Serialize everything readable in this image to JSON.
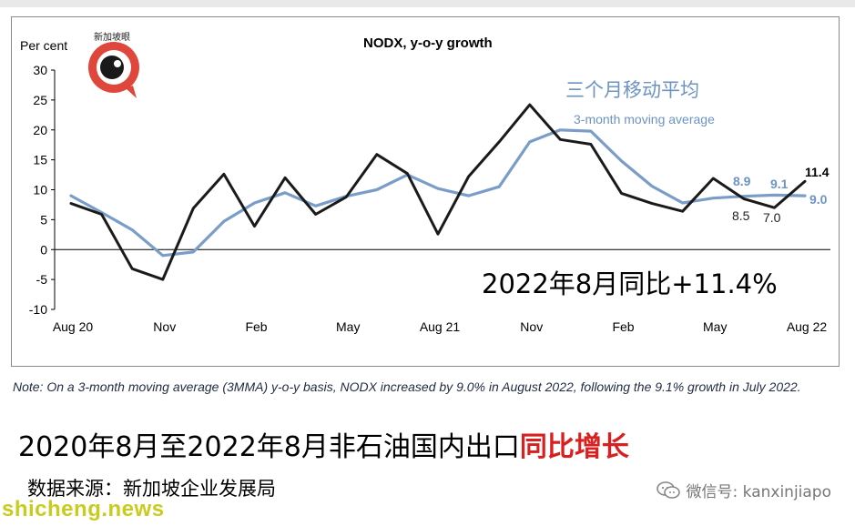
{
  "chart_data": {
    "type": "line",
    "title": "NODX, y-o-y growth",
    "ylabel": "Per cent",
    "ylim": [
      -10,
      30
    ],
    "yticks": [
      "30",
      "25",
      "20",
      "15",
      "10",
      "5",
      "0",
      "-5",
      "-10"
    ],
    "xtick_labels": [
      "Aug 20",
      "Nov",
      "Feb",
      "May",
      "Aug 21",
      "Nov",
      "Feb",
      "May",
      "Aug 22"
    ],
    "x": [
      "Aug 20",
      "Sep 20",
      "Oct 20",
      "Nov 20",
      "Dec 20",
      "Jan 21",
      "Feb 21",
      "Mar 21",
      "Apr 21",
      "May 21",
      "Jun 21",
      "Jul 21",
      "Aug 21",
      "Sep 21",
      "Oct 21",
      "Nov 21",
      "Dec 21",
      "Jan 22",
      "Feb 22",
      "Mar 22",
      "Apr 22",
      "May 22",
      "Jun 22",
      "Jul 22",
      "Aug 22"
    ],
    "series": [
      {
        "name": "NODX",
        "color": "#1a1a1a",
        "values": [
          7.7,
          5.9,
          -3.2,
          -5.0,
          6.9,
          12.6,
          3.9,
          12.0,
          5.9,
          8.8,
          15.9,
          12.7,
          2.6,
          12.2,
          18.0,
          24.2,
          18.4,
          17.6,
          9.4,
          7.7,
          6.4,
          11.9,
          8.5,
          7.0,
          11.4
        ]
      },
      {
        "name": "3-month moving average",
        "color": "#7a9cc8",
        "values": [
          9.0,
          6.2,
          3.3,
          -1.0,
          -0.4,
          4.7,
          7.8,
          9.5,
          7.3,
          8.9,
          10.0,
          12.5,
          10.2,
          9.0,
          10.5,
          18.0,
          20.0,
          19.8,
          14.8,
          10.6,
          7.8,
          8.6,
          8.9,
          9.1,
          9.0
        ]
      }
    ],
    "legend": {
      "chinese": "三个月移动平均",
      "english": "3-month moving average"
    },
    "data_labels": {
      "nodx_last": "11.4",
      "nodx_jun": "8.5",
      "nodx_jul": "7.0",
      "mma_jun": "8.9",
      "mma_jul": "9.1",
      "mma_last": "9.0"
    },
    "overlay_text": "2022年8月同比+11.4%",
    "grid": false
  },
  "logo": {
    "text": "新加坡眼",
    "colors": {
      "ring": "#e0473c",
      "face": "#1a1a1a"
    }
  },
  "note": "Note: On a 3-month moving average (3MMA) y-o-y basis, NODX increased by 9.0% in August 2022, following the 9.1% growth in July 2022.",
  "headline": {
    "main": "2020年8月至2022年8月非石油国内出口",
    "highlight": "同比增长",
    "highlight_color": "#d92020"
  },
  "source": "数据来源：新加坡企业发展局",
  "wechat": {
    "label": "微信号: kanxinjiapo",
    "icon": "wechat-icon"
  },
  "watermark": "shicheng.news"
}
